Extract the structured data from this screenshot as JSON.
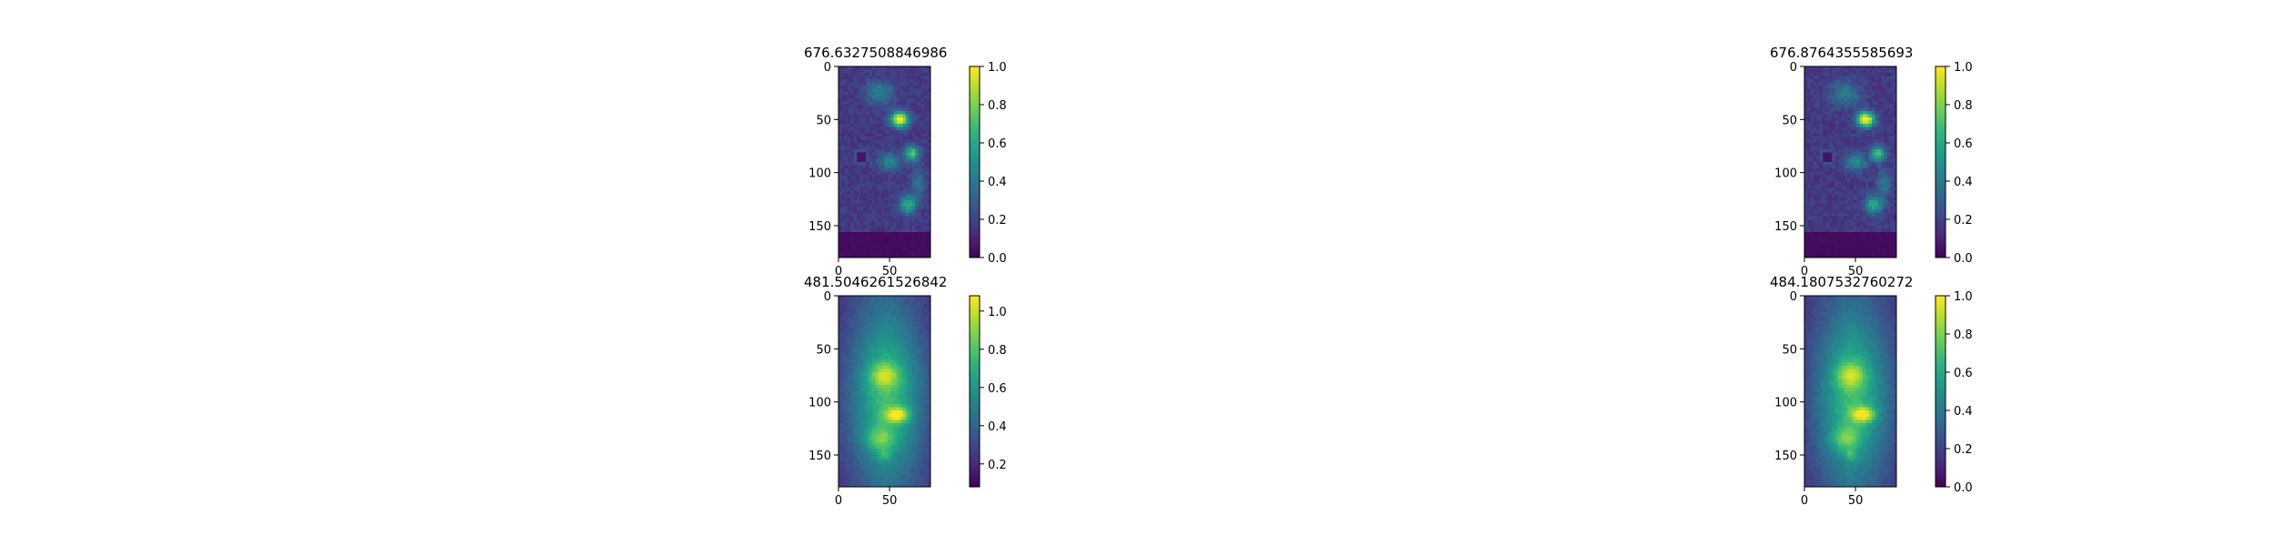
{
  "colors": {
    "viridis": [
      "#440154",
      "#482878",
      "#3e4989",
      "#31688e",
      "#26828e",
      "#1f9e89",
      "#35b779",
      "#6ece58",
      "#b5de2b",
      "#fde725"
    ],
    "axis": "#000000",
    "background": "#ffffff"
  },
  "chart_data": [
    {
      "type": "heatmap",
      "title": "676.6327508846986",
      "image_shape": [
        180,
        90
      ],
      "x_ticks": [
        0,
        50
      ],
      "y_ticks": [
        0,
        50,
        100,
        150
      ],
      "colorbar": {
        "vmin": 0.0,
        "vmax": 1.0,
        "ticks": [
          0.0,
          0.2,
          0.4,
          0.6,
          0.8,
          1.0
        ],
        "tick_labels": [
          "0.0",
          "0.2",
          "0.4",
          "0.6",
          "0.8",
          "1.0"
        ]
      },
      "pattern": "sparse"
    },
    {
      "type": "heatmap",
      "title": "676.8764355585693",
      "image_shape": [
        180,
        90
      ],
      "x_ticks": [
        0,
        50
      ],
      "y_ticks": [
        0,
        50,
        100,
        150
      ],
      "colorbar": {
        "vmin": 0.0,
        "vmax": 1.0,
        "ticks": [
          0.0,
          0.2,
          0.4,
          0.6,
          0.8,
          1.0
        ],
        "tick_labels": [
          "0.0",
          "0.2",
          "0.4",
          "0.6",
          "0.8",
          "1.0"
        ]
      },
      "pattern": "sparse"
    },
    {
      "type": "heatmap",
      "title": "481.5046261526842",
      "image_shape": [
        180,
        90
      ],
      "x_ticks": [
        0,
        50
      ],
      "y_ticks": [
        0,
        50,
        100,
        150
      ],
      "colorbar": {
        "vmin": 0.08,
        "vmax": 1.08,
        "ticks": [
          0.2,
          0.4,
          0.6,
          0.8,
          1.0
        ],
        "tick_labels": [
          "0.2",
          "0.4",
          "0.6",
          "0.8",
          "1.0"
        ]
      },
      "pattern": "smooth"
    },
    {
      "type": "heatmap",
      "title": "484.1807532760272",
      "image_shape": [
        180,
        90
      ],
      "x_ticks": [
        0,
        50
      ],
      "y_ticks": [
        0,
        50,
        100,
        150
      ],
      "colorbar": {
        "vmin": 0.0,
        "vmax": 1.0,
        "ticks": [
          0.0,
          0.2,
          0.4,
          0.6,
          0.8,
          1.0
        ],
        "tick_labels": [
          "0.0",
          "0.2",
          "0.4",
          "0.6",
          "0.8",
          "1.0"
        ]
      },
      "pattern": "smooth"
    }
  ]
}
